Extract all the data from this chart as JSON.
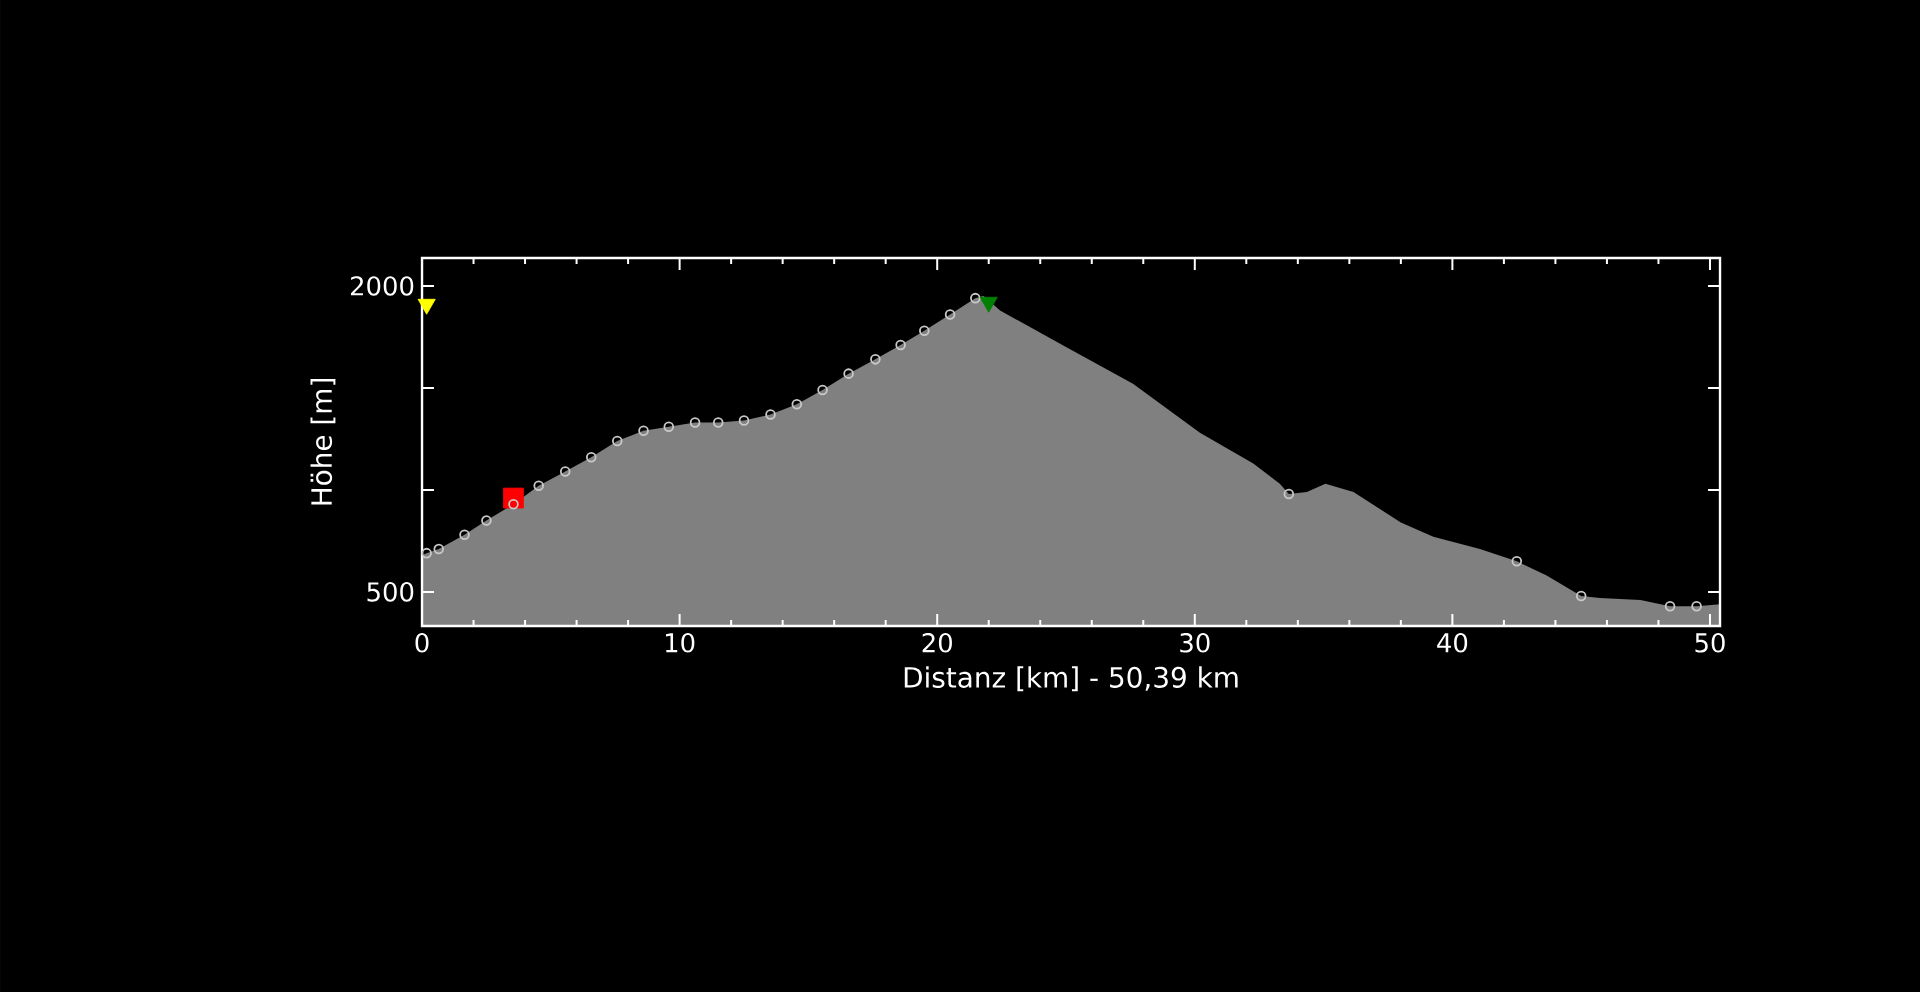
{
  "chart_data": {
    "type": "area",
    "xlabel": "Distanz [km] - 50,39 km",
    "ylabel": "Höhe [m]",
    "xlim": [
      0,
      50.39
    ],
    "ylim": [
      333,
      2137
    ],
    "xticks": [
      0,
      10,
      20,
      30,
      40,
      50
    ],
    "yticks": [
      500,
      {
        "value": 1000,
        "label": null
      },
      {
        "value": 1500,
        "label": null
      },
      2000
    ],
    "grid": false,
    "series": [
      {
        "color": "#808080",
        "x": [
          0,
          0.18,
          0.65,
          1.65,
          2.5,
          3.55,
          4.53,
          5.56,
          6.57,
          7.58,
          8.6,
          9.58,
          10.6,
          11.5,
          12.5,
          13.53,
          14.55,
          15.55,
          16.56,
          17.6,
          18.58,
          19.5,
          20.5,
          21.48,
          21.8,
          22.44,
          25.0,
          27.6,
          30.2,
          32.27,
          33.3,
          33.65,
          34.35,
          35.07,
          36.16,
          38.0,
          39.26,
          41.07,
          42.5,
          43.66,
          45.0,
          45.73,
          47.3,
          48.45,
          49.48,
          50.39
        ],
        "values": [
          680,
          690,
          710,
          780,
          850,
          930,
          1020,
          1090,
          1160,
          1240,
          1290,
          1310,
          1330,
          1330,
          1340,
          1370,
          1420,
          1490,
          1570,
          1640,
          1710,
          1780,
          1860,
          1940,
          1950,
          1880,
          1700,
          1520,
          1280,
          1130,
          1030,
          980,
          990,
          1030,
          990,
          840,
          770,
          710,
          650,
          580,
          480,
          470,
          460,
          430,
          430,
          440
        ]
      },
      {
        "type": "scatter",
        "color": "#ff0000",
        "marker": "square",
        "x": [
          3.55
        ],
        "values": [
          960
        ]
      },
      {
        "type": "scatter",
        "color": "#c8c8c8",
        "marker": "circle",
        "x": [
          0.18,
          0.65,
          1.65,
          2.5,
          3.55,
          4.53,
          5.56,
          6.57,
          7.58,
          8.6,
          9.58,
          10.6,
          11.5,
          12.5,
          13.53,
          14.55,
          15.55,
          16.56,
          17.6,
          18.58,
          19.5,
          20.5,
          21.48,
          33.65,
          42.5,
          45.0,
          48.45,
          49.48
        ],
        "values": [
          690,
          710,
          780,
          850,
          930,
          1020,
          1090,
          1160,
          1240,
          1290,
          1310,
          1330,
          1330,
          1340,
          1370,
          1420,
          1490,
          1570,
          1640,
          1710,
          1780,
          1860,
          1940,
          980,
          650,
          480,
          430,
          430
        ]
      },
      {
        "type": "scatter",
        "color": "#ffff00",
        "marker": "triangle",
        "x": [
          0.18
        ],
        "values": [
          1910
        ]
      },
      {
        "type": "scatter",
        "color": "#008000",
        "marker": "triangle",
        "x": [
          22.0
        ],
        "values": [
          1920
        ]
      }
    ]
  }
}
